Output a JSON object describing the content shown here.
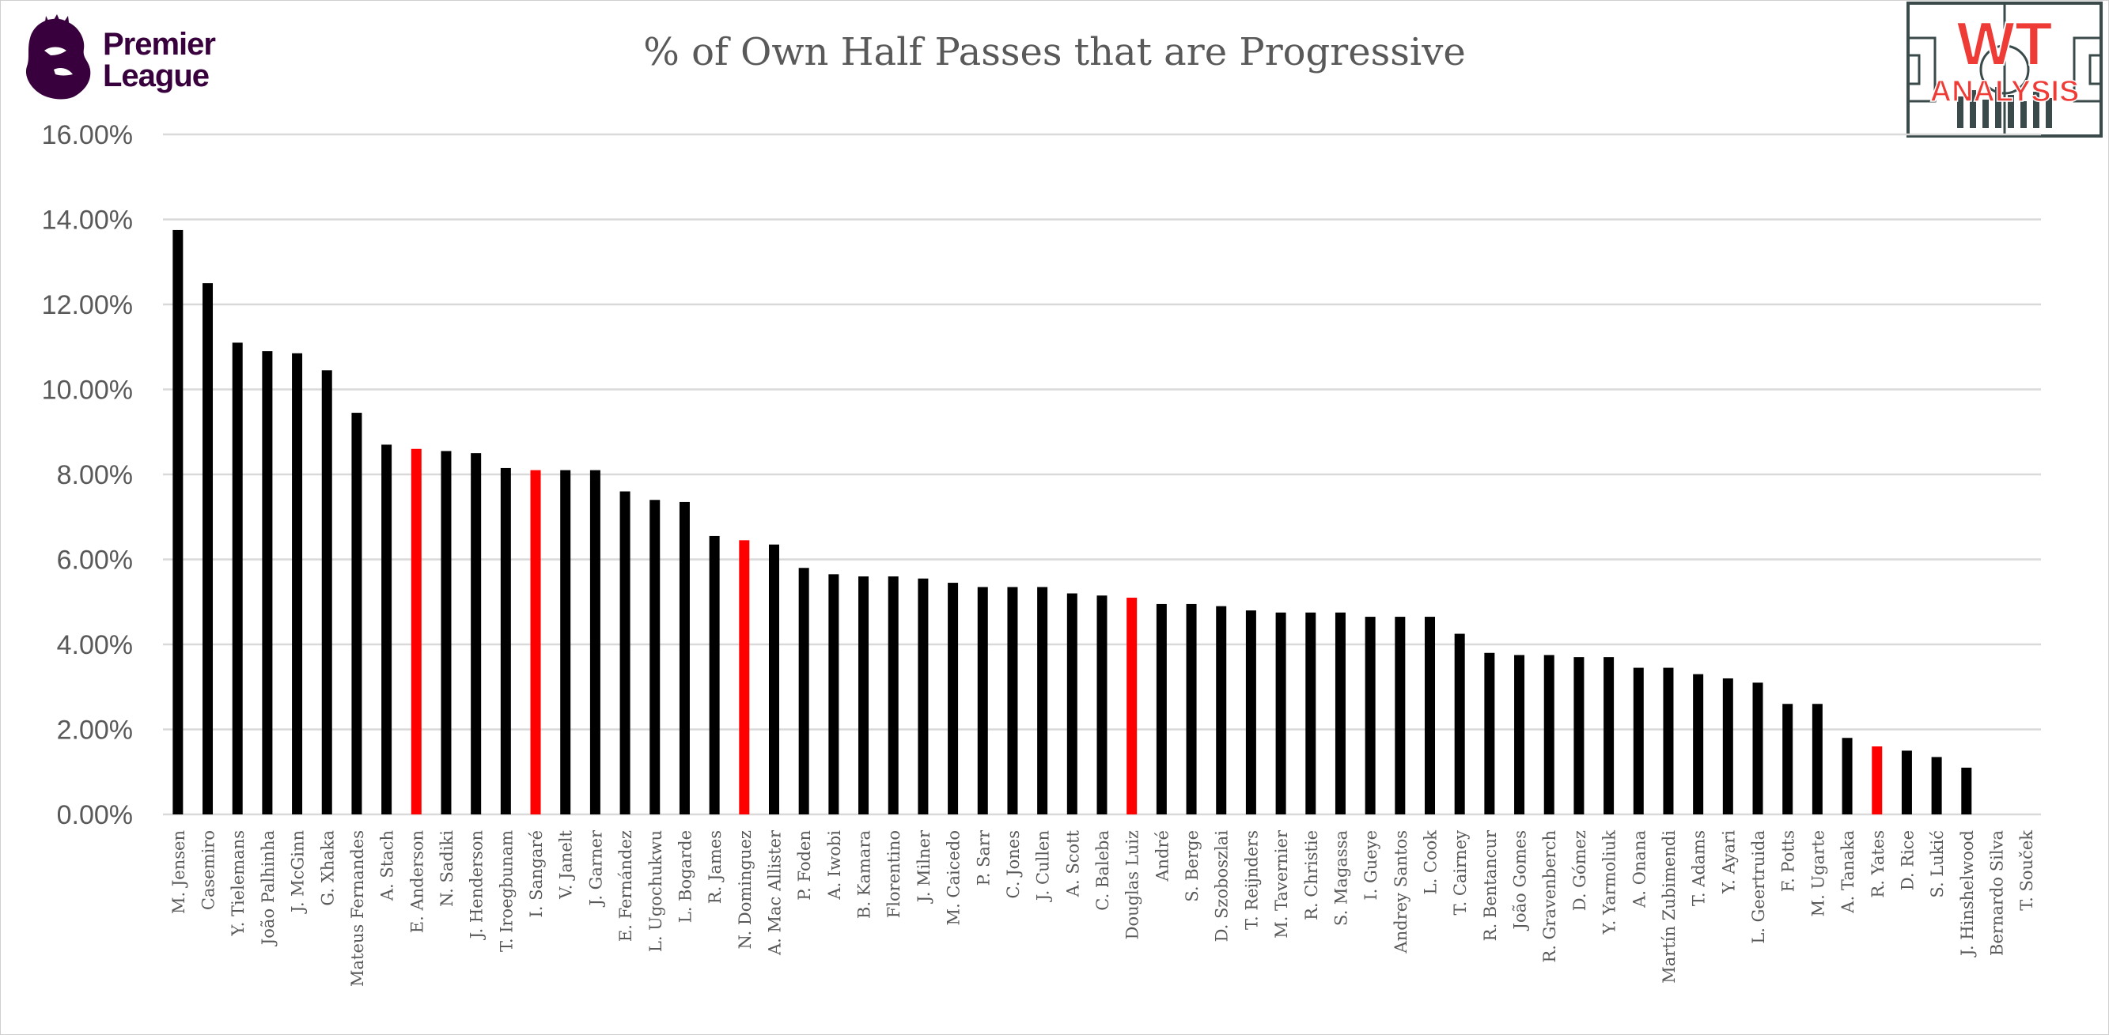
{
  "header": {
    "league_logo_text_line1": "Premier",
    "league_logo_text_line2": "League",
    "brand_logo_text_line1": "WT",
    "brand_logo_text_line2": "ANALYSIS"
  },
  "colors": {
    "bar_default": "#000000",
    "bar_highlight": "#ff0000",
    "gridline": "#d9d9d9",
    "axis_text": "#595959",
    "league_purple": "#38003c",
    "brand_red": "#ef3b36"
  },
  "chart_data": {
    "type": "bar",
    "title": "% of Own Half Passes that are Progressive",
    "xlabel": "",
    "ylabel": "",
    "ylim": [
      0,
      16
    ],
    "yticks": [
      0,
      2,
      4,
      6,
      8,
      10,
      12,
      14,
      16
    ],
    "ytick_labels": [
      "0.00%",
      "2.00%",
      "4.00%",
      "6.00%",
      "8.00%",
      "10.00%",
      "12.00%",
      "14.00%",
      "16.00%"
    ],
    "grid": true,
    "legend": "none",
    "categories": [
      "M. Jensen",
      "Casemiro",
      "Y. Tielemans",
      "João Palhinha",
      "J. McGinn",
      "G. Xhaka",
      "Mateus Fernandes",
      "A. Stach",
      "E. Anderson",
      "N. Sadiki",
      "J. Henderson",
      "T. Iroegbunam",
      "I. Sangaré",
      "V. Janelt",
      "J. Garner",
      "E. Fernández",
      "L. Ugochukwu",
      "L. Bogarde",
      "R. James",
      "N. Dominguez",
      "A. Mac Allister",
      "P. Foden",
      "A. Iwobi",
      "B. Kamara",
      "Florentino",
      "J. Milner",
      "M. Caicedo",
      "P. Sarr",
      "C. Jones",
      "J. Cullen",
      "A. Scott",
      "C. Baleba",
      "Douglas Luiz",
      "André",
      "S. Berge",
      "D. Szoboszlai",
      "T. Reijnders",
      "M. Tavernier",
      "R. Christie",
      "S. Magassa",
      "I. Gueye",
      "Andrey Santos",
      "L. Cook",
      "T. Cairney",
      "R. Bentancur",
      "João Gomes",
      "R. Gravenberch",
      "D. Gómez",
      "Y. Yarmoliuk",
      "A. Onana",
      "Martín Zubimendi",
      "T. Adams",
      "Y. Ayari",
      "L. Geertruida",
      "F. Potts",
      "M. Ugarte",
      "A. Tanaka",
      "R. Yates",
      "D. Rice",
      "S. Lukić",
      "J. Hinshelwood",
      "Bernardo Silva",
      "T. Souček"
    ],
    "values": [
      13.75,
      12.5,
      11.1,
      10.9,
      10.85,
      10.45,
      9.45,
      8.7,
      8.6,
      8.55,
      8.5,
      8.15,
      8.1,
      8.1,
      8.1,
      7.6,
      7.4,
      7.35,
      6.55,
      6.45,
      6.35,
      5.8,
      5.65,
      5.6,
      5.6,
      5.55,
      5.45,
      5.35,
      5.35,
      5.35,
      5.2,
      5.15,
      5.1,
      4.95,
      4.95,
      4.9,
      4.8,
      4.75,
      4.75,
      4.75,
      4.65,
      4.65,
      4.65,
      4.25,
      3.8,
      3.75,
      3.75,
      3.7,
      3.7,
      3.45,
      3.45,
      3.3,
      3.2,
      3.1,
      2.6,
      2.6,
      1.8,
      1.6,
      1.5,
      1.35,
      1.1,
      0,
      0
    ],
    "highlighted": [
      "E. Anderson",
      "I. Sangaré",
      "N. Dominguez",
      "Douglas Luiz",
      "R. Yates"
    ]
  }
}
